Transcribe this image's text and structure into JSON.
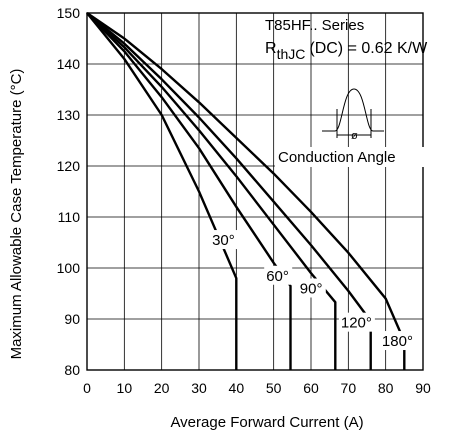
{
  "chart_data": {
    "type": "line",
    "title_lines": [
      "T85HF.. Series",
      "R",
      "thJC",
      "(DC) = 0.62 K/W"
    ],
    "xlabel": "Average Forward Current (A)",
    "ylabel": "Maximum Allowable Case Temperature (°C)",
    "xlim": [
      0,
      90
    ],
    "ylim": [
      80,
      150
    ],
    "x_ticks": [
      0,
      10,
      20,
      30,
      40,
      50,
      60,
      70,
      80,
      90
    ],
    "y_ticks": [
      80,
      90,
      100,
      110,
      120,
      130,
      140,
      150
    ],
    "grid": true,
    "inset_symbol": "ø",
    "inset_label": "Conduction Angle",
    "series": [
      {
        "name": "30°",
        "x": [
          0,
          10,
          20,
          30,
          35,
          40,
          40
        ],
        "y": [
          150,
          141,
          130,
          115,
          106.5,
          98,
          80
        ]
      },
      {
        "name": "60°",
        "x": [
          0,
          10,
          20,
          30,
          40,
          50,
          54.5,
          54.5
        ],
        "y": [
          150,
          142.5,
          133.5,
          123.5,
          112,
          101,
          96.5,
          80
        ]
      },
      {
        "name": "90°",
        "x": [
          0,
          10,
          20,
          30,
          40,
          50,
          60,
          66.5,
          66.5
        ],
        "y": [
          150,
          143.3,
          135.5,
          127,
          118,
          108.5,
          99,
          93.3,
          80
        ]
      },
      {
        "name": "120°",
        "x": [
          0,
          10,
          20,
          30,
          40,
          50,
          60,
          70,
          76,
          76
        ],
        "y": [
          150,
          144,
          137,
          129.5,
          121.5,
          113,
          104.5,
          95.5,
          89.6,
          80
        ]
      },
      {
        "name": "180°",
        "x": [
          0,
          10,
          20,
          30,
          40,
          50,
          60,
          70,
          80,
          85,
          85
        ],
        "y": [
          150,
          145,
          139,
          132.5,
          125.5,
          118.5,
          111,
          103,
          94,
          85.6,
          80
        ]
      }
    ]
  }
}
